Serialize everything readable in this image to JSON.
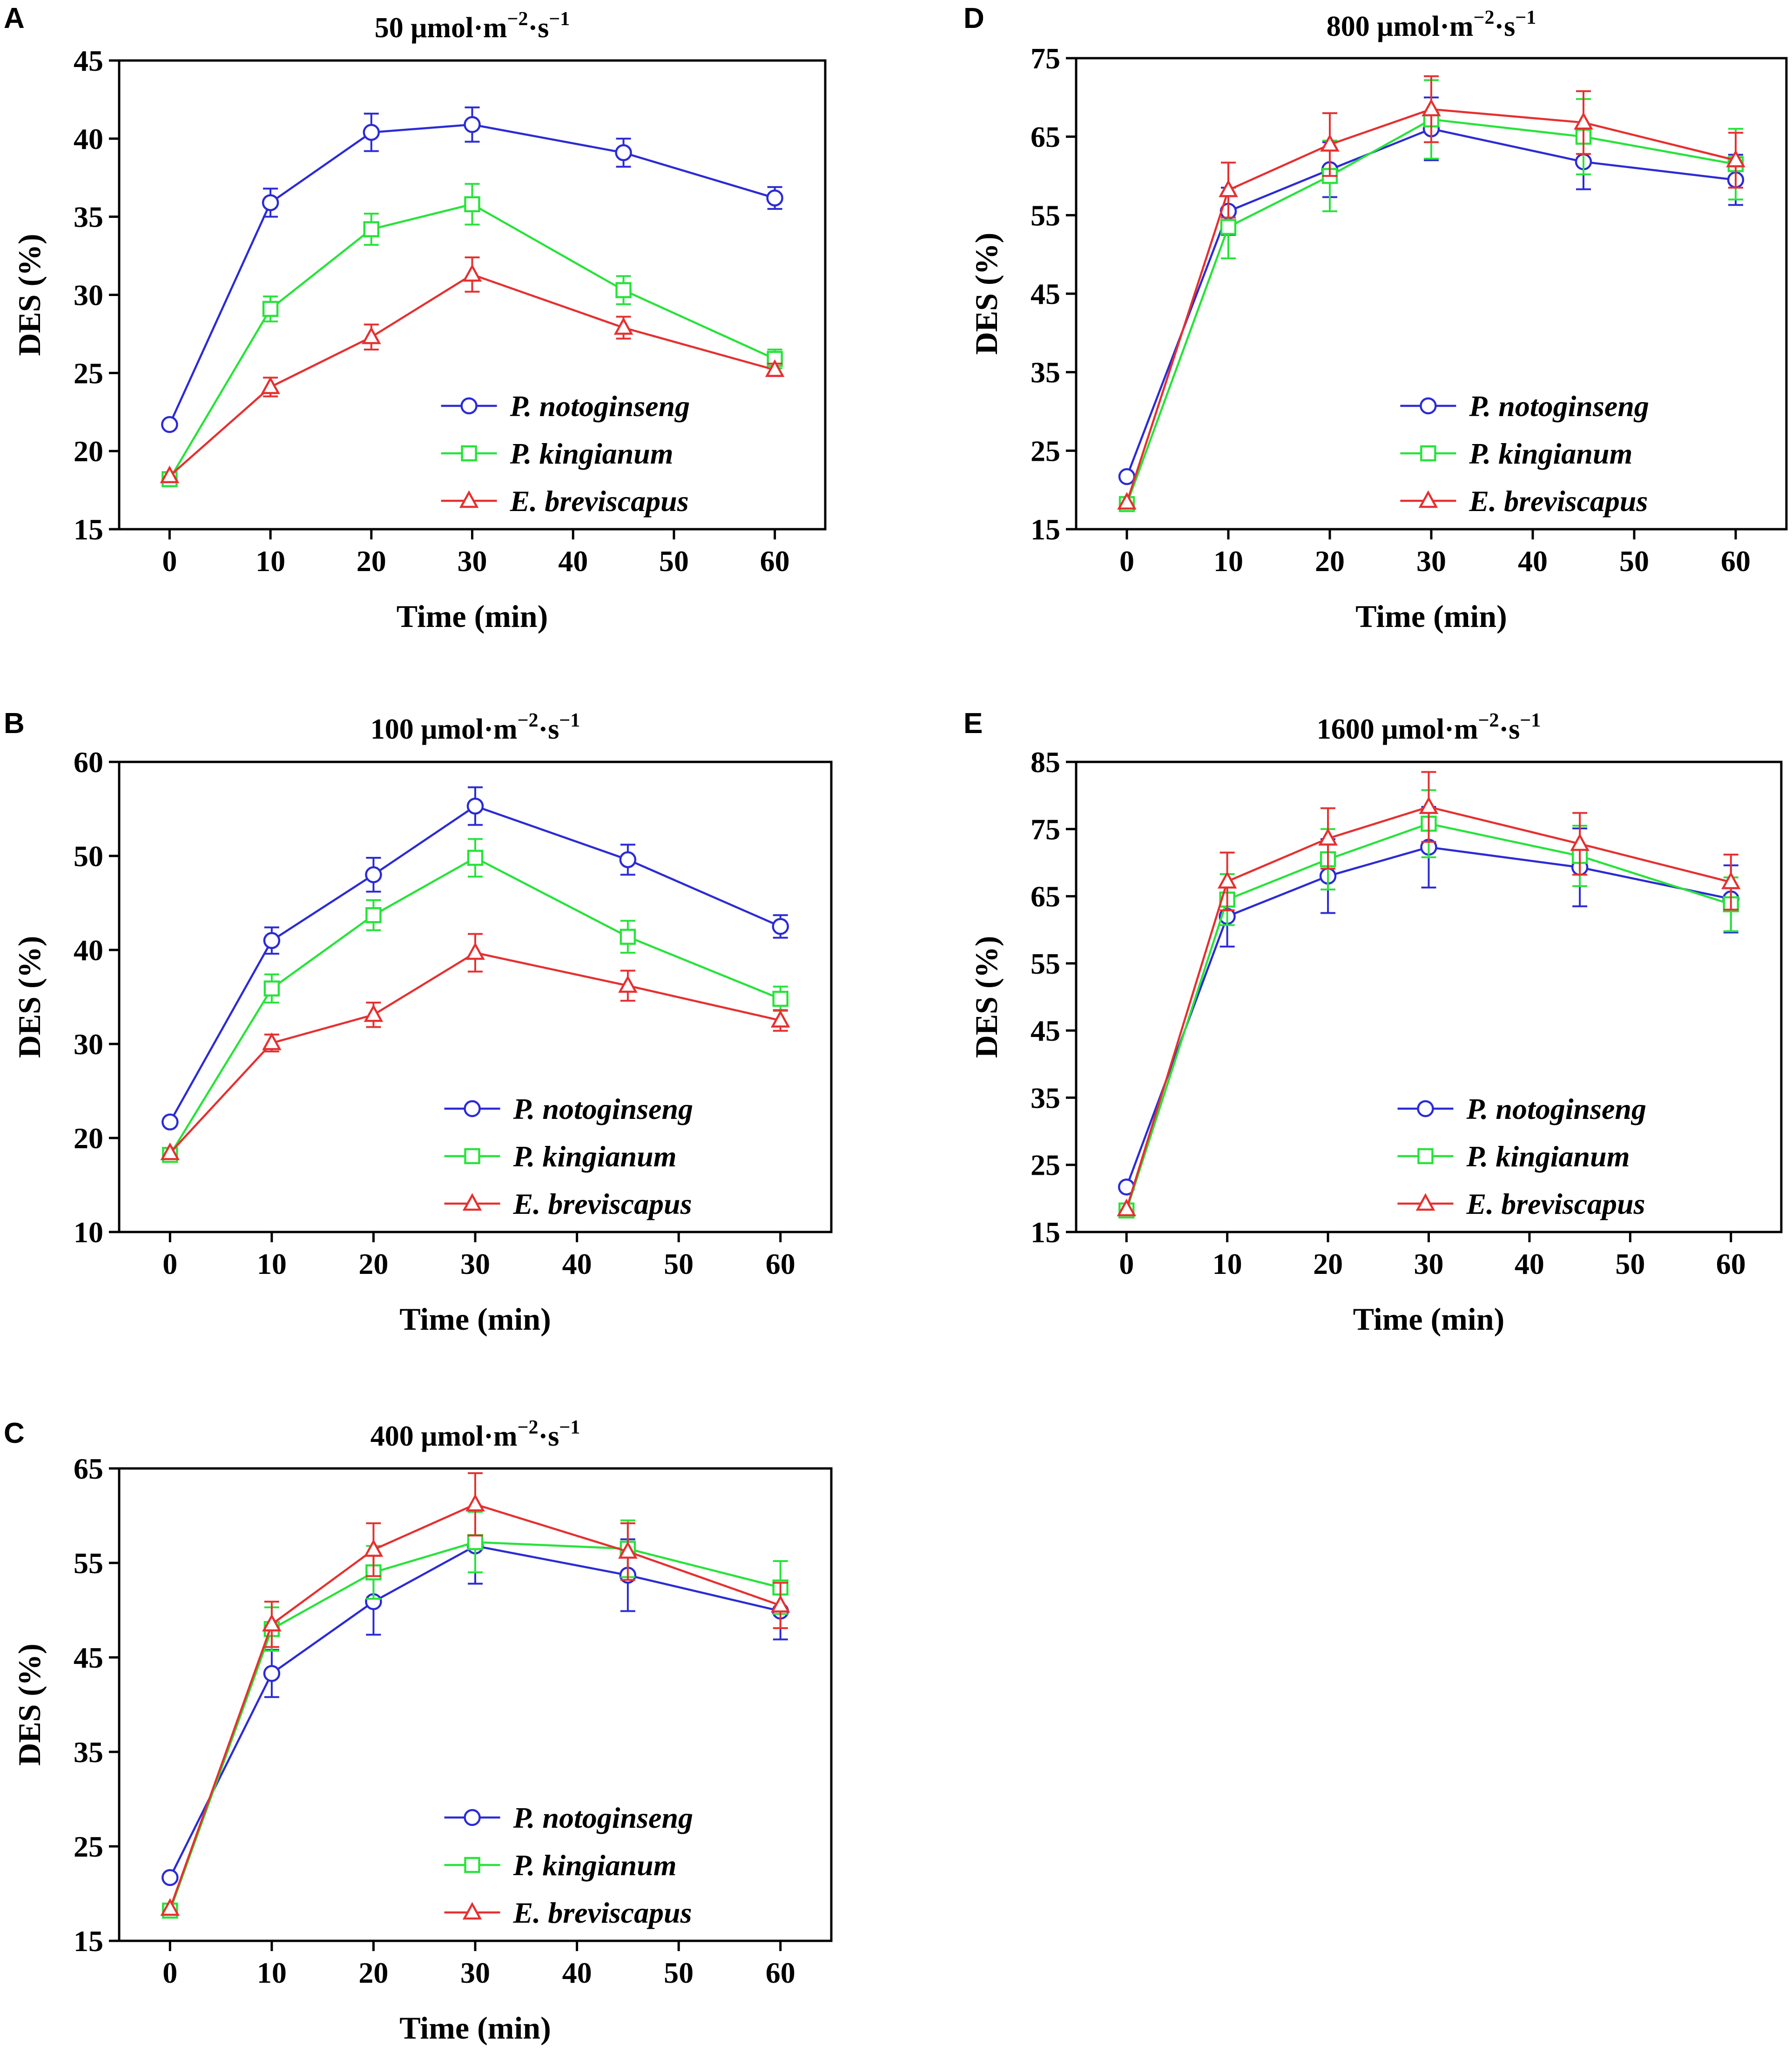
{
  "colors": {
    "P. notoginseng": "#2b2bd6",
    "P. kingianum": "#27e33a",
    "E. breviscapus": "#e63030"
  },
  "markers": {
    "P. notoginseng": "circle",
    "P. kingianum": "square",
    "E. breviscapus": "triangle"
  },
  "chart_data": [
    {
      "panel": "A",
      "type": "line",
      "title": {
        "prefix": "50 μmol·m",
        "exp1": "−2",
        "mid": "·s",
        "exp2": "−1"
      },
      "xlabel": "Time (min)",
      "ylabel": "DES (%)",
      "xlim": [
        -5,
        65
      ],
      "xticks": [
        0,
        10,
        20,
        30,
        40,
        50,
        60
      ],
      "ylim": [
        15,
        45
      ],
      "yticks": [
        15,
        20,
        25,
        30,
        35,
        40,
        45
      ],
      "x": [
        0,
        10,
        20,
        30,
        45,
        60
      ],
      "legend_position": "lower-right",
      "series": [
        {
          "name": "P. notoginseng",
          "values": [
            21.7,
            35.9,
            40.4,
            40.9,
            39.1,
            36.2
          ],
          "errors": [
            0,
            0.9,
            1.2,
            1.1,
            0.9,
            0.7
          ]
        },
        {
          "name": "P. kingianum",
          "values": [
            18.2,
            29.1,
            34.2,
            35.8,
            30.3,
            25.9
          ],
          "errors": [
            0,
            0.8,
            1.0,
            1.3,
            0.9,
            0.6
          ]
        },
        {
          "name": "E. breviscapus",
          "values": [
            18.4,
            24.1,
            27.3,
            31.3,
            27.9,
            25.2
          ],
          "errors": [
            0,
            0.6,
            0.8,
            1.1,
            0.7,
            0.4
          ]
        }
      ]
    },
    {
      "panel": "B",
      "type": "line",
      "title": {
        "prefix": "100 μmol·m",
        "exp1": "−2",
        "mid": "·s",
        "exp2": "−1"
      },
      "xlabel": "Time (min)",
      "ylabel": "DES (%)",
      "xlim": [
        -5,
        65
      ],
      "xticks": [
        0,
        10,
        20,
        30,
        40,
        50,
        60
      ],
      "ylim": [
        10,
        60
      ],
      "yticks": [
        10,
        20,
        30,
        40,
        50,
        60
      ],
      "x": [
        0,
        10,
        20,
        30,
        45,
        60
      ],
      "legend_position": "lower-right",
      "series": [
        {
          "name": "P. notoginseng",
          "values": [
            21.7,
            41.0,
            48.0,
            55.3,
            49.6,
            42.5
          ],
          "errors": [
            0,
            1.4,
            1.8,
            2.0,
            1.6,
            1.2
          ]
        },
        {
          "name": "P. kingianum",
          "values": [
            18.2,
            35.9,
            43.7,
            49.8,
            41.4,
            34.8
          ],
          "errors": [
            0,
            1.5,
            1.6,
            2.0,
            1.7,
            1.3
          ]
        },
        {
          "name": "E. breviscapus",
          "values": [
            18.4,
            30.1,
            33.1,
            39.7,
            36.2,
            32.5
          ],
          "errors": [
            0,
            0.9,
            1.3,
            2.0,
            1.6,
            1.1
          ]
        }
      ]
    },
    {
      "panel": "C",
      "type": "line",
      "title": {
        "prefix": "400 μmol·m",
        "exp1": "−2",
        "mid": "·s",
        "exp2": "−1"
      },
      "xlabel": "Time (min)",
      "ylabel": "DES (%)",
      "xlim": [
        -5,
        65
      ],
      "xticks": [
        0,
        10,
        20,
        30,
        40,
        50,
        60
      ],
      "ylim": [
        15,
        65
      ],
      "yticks": [
        15,
        25,
        35,
        45,
        55,
        65
      ],
      "x": [
        0,
        10,
        20,
        30,
        45,
        60
      ],
      "legend_position": "lower-right",
      "series": [
        {
          "name": "P. notoginseng",
          "values": [
            21.7,
            43.3,
            50.9,
            56.8,
            53.7,
            49.9
          ],
          "errors": [
            0,
            2.5,
            3.5,
            4.0,
            3.8,
            3.0
          ]
        },
        {
          "name": "P. kingianum",
          "values": [
            18.2,
            48.0,
            54.0,
            57.2,
            56.5,
            52.4
          ],
          "errors": [
            0,
            2.3,
            2.8,
            3.2,
            3.0,
            2.8
          ]
        },
        {
          "name": "E. breviscapus",
          "values": [
            18.4,
            48.5,
            56.4,
            61.2,
            56.2,
            50.5
          ],
          "errors": [
            0,
            2.4,
            2.8,
            3.3,
            3.0,
            2.4
          ]
        }
      ]
    },
    {
      "panel": "D",
      "type": "line",
      "title": {
        "prefix": "800 μmol·m",
        "exp1": "−2",
        "mid": "·s",
        "exp2": "−1"
      },
      "xlabel": "Time (min)",
      "ylabel": "DES (%)",
      "xlim": [
        -5,
        65
      ],
      "xticks": [
        0,
        10,
        20,
        30,
        40,
        50,
        60
      ],
      "ylim": [
        15,
        75
      ],
      "yticks": [
        15,
        25,
        35,
        45,
        55,
        65,
        75
      ],
      "x": [
        0,
        10,
        20,
        30,
        45,
        60
      ],
      "legend_position": "lower-right",
      "series": [
        {
          "name": "P. notoginseng",
          "values": [
            21.7,
            55.5,
            60.8,
            66.0,
            61.8,
            59.5
          ],
          "errors": [
            0,
            3.0,
            3.5,
            4.0,
            3.5,
            3.2
          ]
        },
        {
          "name": "P. kingianum",
          "values": [
            18.2,
            53.5,
            60.0,
            67.2,
            65.0,
            61.5
          ],
          "errors": [
            0,
            4.0,
            4.5,
            5.0,
            4.8,
            4.5
          ]
        },
        {
          "name": "E. breviscapus",
          "values": [
            18.4,
            58.2,
            64.0,
            68.5,
            66.8,
            62.0
          ],
          "errors": [
            0,
            3.5,
            4.0,
            4.2,
            4.0,
            3.5
          ]
        }
      ]
    },
    {
      "panel": "E",
      "type": "line",
      "title": {
        "prefix": "1600 μmol·m",
        "exp1": "−2",
        "mid": "·s",
        "exp2": "−1"
      },
      "xlabel": "Time (min)",
      "ylabel": "DES (%)",
      "xlim": [
        -5,
        65
      ],
      "xticks": [
        0,
        10,
        20,
        30,
        40,
        50,
        60
      ],
      "ylim": [
        15,
        85
      ],
      "yticks": [
        15,
        25,
        35,
        45,
        55,
        65,
        75,
        85
      ],
      "x": [
        0,
        10,
        20,
        30,
        45,
        60
      ],
      "legend_position": "lower-right",
      "series": [
        {
          "name": "P. notoginseng",
          "values": [
            21.7,
            62.0,
            68.0,
            72.3,
            69.3,
            64.6
          ],
          "errors": [
            0,
            4.5,
            5.5,
            6.0,
            5.8,
            5.0
          ]
        },
        {
          "name": "P. kingianum",
          "values": [
            18.2,
            64.5,
            70.5,
            75.8,
            71.0,
            63.8
          ],
          "errors": [
            0,
            3.8,
            4.5,
            5.0,
            4.5,
            4.0
          ]
        },
        {
          "name": "E. breviscapus",
          "values": [
            18.4,
            67.2,
            73.6,
            78.3,
            72.8,
            67.1
          ],
          "errors": [
            0,
            4.3,
            4.5,
            5.2,
            4.6,
            4.1
          ]
        }
      ]
    }
  ]
}
